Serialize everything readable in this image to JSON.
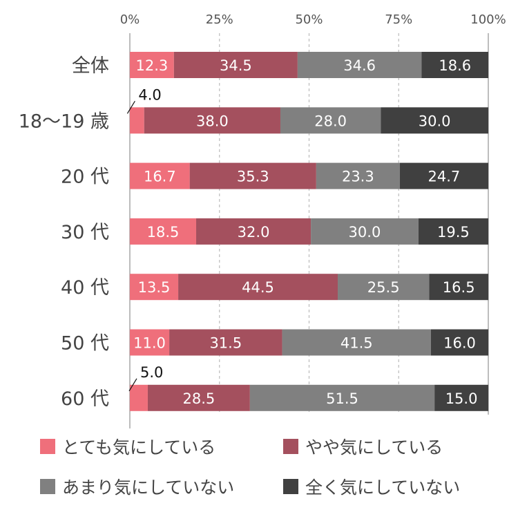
{
  "chart_data": {
    "type": "bar",
    "orientation": "horizontal",
    "stacked": true,
    "xlim": [
      0,
      100
    ],
    "x_ticks": [
      "0%",
      "25%",
      "50%",
      "75%",
      "100%"
    ],
    "grid": true,
    "legend_position": "bottom",
    "categories": [
      "全体",
      "18〜19 歳",
      "20 代",
      "30 代",
      "40 代",
      "50 代",
      "60 代"
    ],
    "series": [
      {
        "name": "とても気にしている",
        "color": "#ef6f7b",
        "values": [
          12.3,
          4.0,
          16.7,
          18.5,
          13.5,
          11.0,
          5.0
        ]
      },
      {
        "name": "やや気にしている",
        "color": "#a4505e",
        "values": [
          34.5,
          38.0,
          35.3,
          32.0,
          44.5,
          31.5,
          28.5
        ]
      },
      {
        "name": "あまり気にしていない",
        "color": "#808080",
        "values": [
          34.6,
          28.0,
          23.3,
          30.0,
          25.5,
          41.5,
          51.5
        ]
      },
      {
        "name": "全く気にしていない",
        "color": "#404040",
        "values": [
          18.6,
          30.0,
          24.7,
          19.5,
          16.5,
          16.0,
          15.0
        ]
      }
    ],
    "value_labels": [
      [
        "12.3",
        "4.0",
        "16.7",
        "18.5",
        "13.5",
        "11.0",
        "5.0"
      ],
      [
        "34.5",
        "38.0",
        "35.3",
        "32.0",
        "44.5",
        "31.5",
        "28.5"
      ],
      [
        "34.6",
        "28.0",
        "23.3",
        "30.0",
        "25.5",
        "41.5",
        "51.5"
      ],
      [
        "18.6",
        "30.0",
        "24.7",
        "19.5",
        "16.5",
        "16.0",
        "15.0"
      ]
    ]
  },
  "legend": [
    {
      "label": "とても気にしている",
      "color": "#ef6f7b"
    },
    {
      "label": "やや気にしている",
      "color": "#a4505e"
    },
    {
      "label": "あまり気にしていない",
      "color": "#808080"
    },
    {
      "label": "全く気にしていない",
      "color": "#404040"
    }
  ]
}
